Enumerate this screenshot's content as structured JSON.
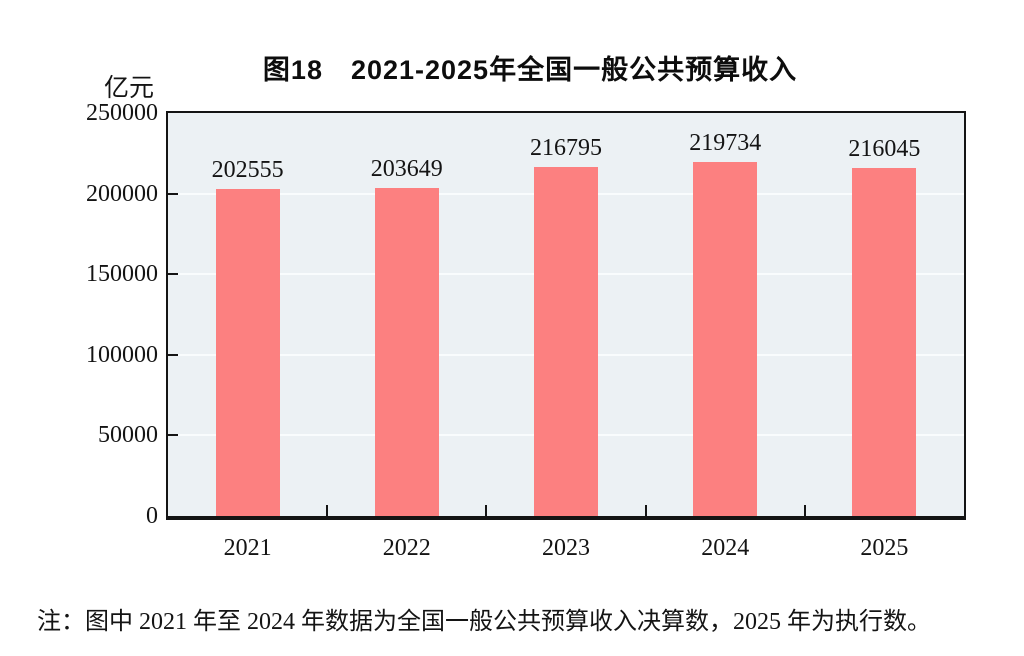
{
  "chart": {
    "title": "图18　2021-2025年全国一般公共预算收入",
    "unit": "亿元"
  },
  "chart_data": {
    "type": "bar",
    "categories": [
      "2021",
      "2022",
      "2023",
      "2024",
      "2025"
    ],
    "values": [
      202555,
      203649,
      216795,
      219734,
      216045
    ],
    "title": "图18　2021-2025年全国一般公共预算收入",
    "xlabel": "",
    "ylabel": "亿元",
    "ylim": [
      0,
      250000
    ],
    "yticks": [
      0,
      50000,
      100000,
      150000,
      200000,
      250000
    ],
    "grid": true,
    "legend": "none",
    "bar_color": "#fc8080",
    "plot_background": "#ecf1f4",
    "gridline_color": "#f9fcfd"
  },
  "note": {
    "text": "注：图中 2021 年至 2024 年数据为全国一般公共预算收入决算数，2025 年为执行数。"
  }
}
